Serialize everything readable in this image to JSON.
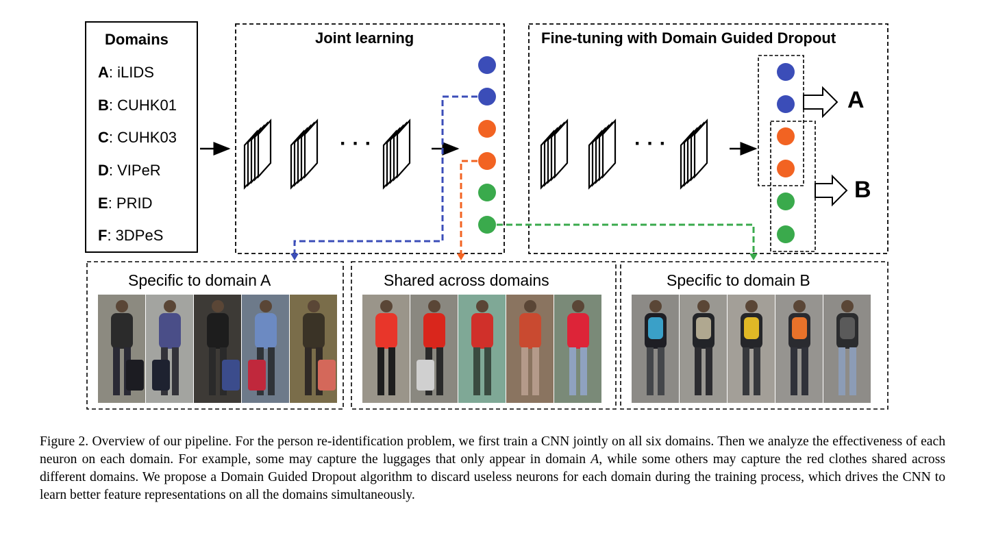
{
  "domains_box": {
    "title": "Domains",
    "items": [
      {
        "letter": "A",
        "name": ": iLIDS"
      },
      {
        "letter": "B",
        "name": ": CUHK01"
      },
      {
        "letter": "C",
        "name": ": CUHK03"
      },
      {
        "letter": "D",
        "name": ": VIPeR"
      },
      {
        "letter": "E",
        "name": ": PRID"
      },
      {
        "letter": "F",
        "name": ": 3DPeS"
      }
    ]
  },
  "joint_learning": {
    "title": "Joint learning",
    "ellipsis": "· · ·"
  },
  "fine_tuning": {
    "title": "Fine-tuning with Domain Guided Dropout",
    "ellipsis": "· · ·",
    "output_a": "A",
    "output_b": "B"
  },
  "panels": {
    "specific_a": "Specific to domain A",
    "shared": "Shared across domains",
    "specific_b": "Specific to domain B"
  },
  "colors": {
    "blue": "#3b4db8",
    "orange": "#f26322",
    "green": "#3aaa4c",
    "dashed_blue": "#3b4db8",
    "dashed_orange": "#f26322",
    "dashed_green": "#3aaa4c"
  },
  "caption": {
    "s1": "Figure 2. Overview of our pipeline. For the person re-identification problem, we first train a CNN jointly on all six domains. Then we analyze the effectiveness of each neuron on each domain. For example, some may capture the luggages that only appear in domain ",
    "s1_var": "A",
    "s2": ", while some others may capture the red clothes shared across different domains. We propose a Domain Guided Dropout algorithm to discard useless neurons for each domain during the training process, which drives the CNN to learn better feature representations on all the domains simultaneously."
  }
}
